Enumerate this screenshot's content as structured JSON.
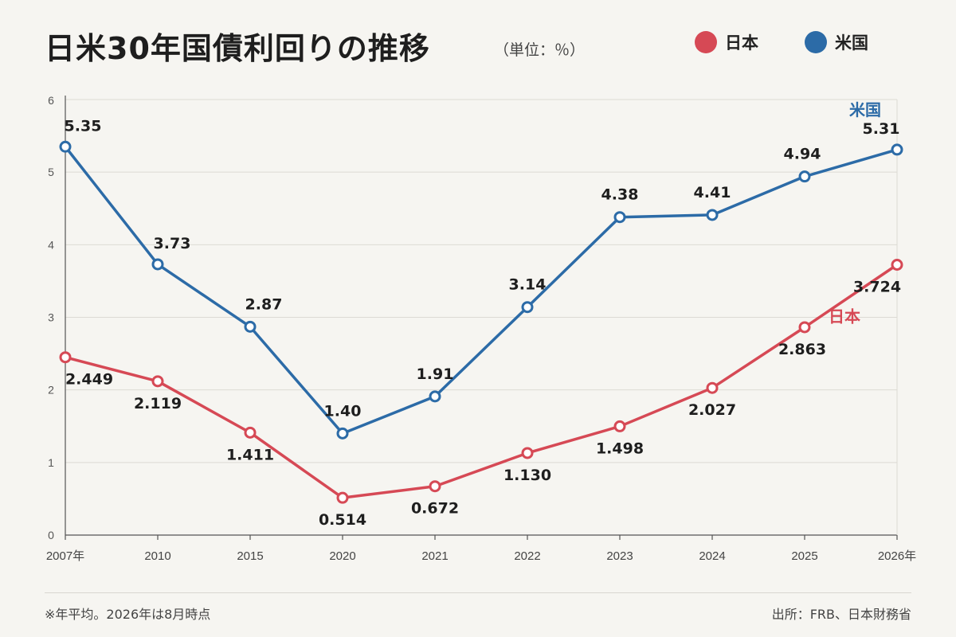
{
  "header": {
    "title": "日米30年国債利回りの推移",
    "unit": "（単位：％）"
  },
  "legend": [
    {
      "label": "日本",
      "color": "#d64955"
    },
    {
      "label": "米国",
      "color": "#2c6ba7"
    }
  ],
  "chart_data": {
    "type": "line",
    "categories": [
      "2007年",
      "2010",
      "2015",
      "2020",
      "2021",
      "2022",
      "2023",
      "2024",
      "2025",
      "2026年"
    ],
    "ylim": [
      0,
      6
    ],
    "yticks": [
      "0",
      "1",
      "2",
      "3",
      "4",
      "5",
      "6"
    ],
    "grid": true,
    "legend_position": "top-right",
    "series": [
      {
        "name": "米国",
        "color": "#2c6ba7",
        "values": [
          5.35,
          3.73,
          2.87,
          1.4,
          1.91,
          3.14,
          4.38,
          4.41,
          4.94,
          5.31
        ],
        "labels": [
          "5.35",
          "3.73",
          "2.87",
          "1.40",
          "1.91",
          "3.14",
          "4.38",
          "4.41",
          "4.94",
          "5.31"
        ]
      },
      {
        "name": "日本",
        "color": "#d64955",
        "values": [
          2.449,
          2.119,
          1.411,
          0.514,
          0.672,
          1.13,
          1.498,
          2.027,
          2.863,
          3.724
        ],
        "labels": [
          "2.449",
          "2.119",
          "1.411",
          "0.514",
          "0.672",
          "1.130",
          "1.498",
          "2.027",
          "2.863",
          "3.724"
        ]
      }
    ]
  },
  "footer": {
    "note": "※年平均。2026年は8月時点",
    "source": "出所：FRB、日本財務省"
  }
}
